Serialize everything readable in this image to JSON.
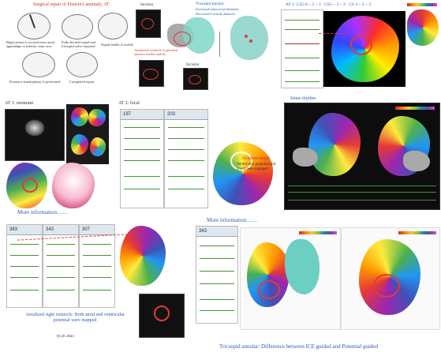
{
  "top_left": {
    "title": "Surgical repair of Ebstein's anomaly, AT",
    "captions": [
      "Right atrium is incised from atrial appendage to inferior vena cava",
      "Fully-incised septal and tricuspid valve repaired",
      "Septal leaflet is visible",
      "Posterior annuloplasty is performed",
      "Completed repair"
    ]
  },
  "top_middle": {
    "incision_label_1": "Incision",
    "incision_label_2": "Incision",
    "atrialized_note": "Atrialized ventricle is plicated; anterior leaflet mobile",
    "tricuspid_title": "Tricuspid annular:",
    "tricuspid_lines": [
      "Increased transversal diameter",
      "Decreased vertical diameter"
    ]
  },
  "top_right": {
    "title": "AT 1: CS5-6 ~ 2 ~ 3 · CS5 ~ 2 ~ 3 · CS 3 ~ 2 ~ 3"
  },
  "row2": {
    "at1_label": "AT 1: reentrant",
    "at2_label": "AT 2: focal",
    "ablation_label": "Ablation target",
    "ablation_note": "Ventricular potential and could been mapped",
    "sinus_label": "Sinus rhythm",
    "more_info_1": "More information……",
    "more_info_2": "More information……",
    "ecg_hdr_1": "197",
    "ecg_hdr_2": "203"
  },
  "bottom_left": {
    "caption": "Atrialized right ventricle: Both atrial and ventricular potential were mapped",
    "hdr": [
      "383",
      "343",
      "307"
    ]
  },
  "bottom_right": {
    "hdr": "343",
    "caption": "Tricuspid annular: Difference between ICE guided and Potential guided"
  },
  "author": "by dr. zhao",
  "colors": {
    "caption_red": "#c0392b",
    "caption_blue": "#2a5db0"
  }
}
